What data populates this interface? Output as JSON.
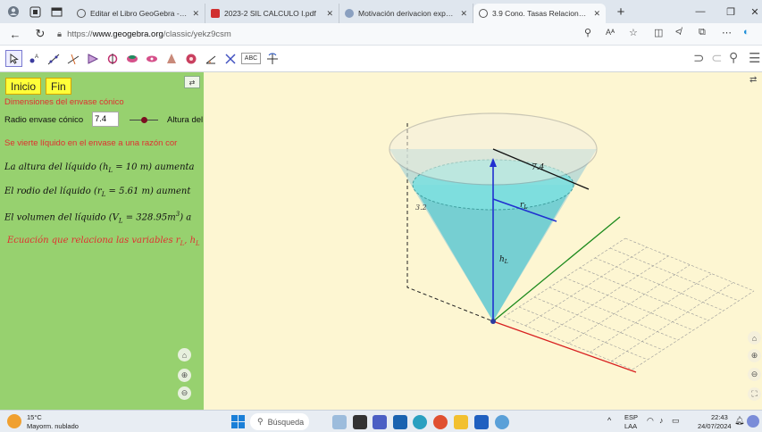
{
  "browser": {
    "tabs": [
      {
        "title": "Editar el Libro GeoGebra - CÁLC",
        "active": false,
        "favicon_color": "#555555"
      },
      {
        "title": "2023-2 SIL CALCULO I.pdf",
        "active": false,
        "favicon_color": "#d03030"
      },
      {
        "title": "Motivación derivacion exponenc",
        "active": false,
        "favicon_color": "#8aa0c0"
      },
      {
        "title": "3.9 Cono. Tasas Relacionadas - G",
        "active": true,
        "favicon_color": "#555555"
      }
    ],
    "new_tab": "+",
    "url_prefix": "https://",
    "url_host": "www.geogebra.org",
    "url_path": "/classic/yekz9csm",
    "reader_mode": "Aᴬ"
  },
  "toolbar": {
    "tools": [
      "pointer-tool",
      "point-tool",
      "line-tool",
      "perpendicular-tool",
      "polygon-tool",
      "circle-tool",
      "sphere-tool",
      "pyramid-tool",
      "plane-tool",
      "angle-tool",
      "reflect-tool",
      "text-tool",
      "rotate-view-tool"
    ],
    "text_tool_label": "ABC"
  },
  "algebra": {
    "start_label": "Inicio",
    "end_label": "Fin",
    "title": "Dimensiones del envase cónico",
    "radius_label": "Radio envase cónico",
    "radius_value": "7.4",
    "height_label": "Altura del",
    "pour_text": "Se vierte líquido en el  envase a una  razón cor",
    "height_line": "La altura del líquido (h",
    "height_line_rest": " = 10 m) aumenta",
    "radius_line": "El rodio del  líquido (r",
    "radius_line_rest": " = 5.61 m) aument",
    "volume_line": "El volumen del líquido (V",
    "volume_line_rest": " = 328.95m",
    "volume_tail": ") a",
    "sub_L": "L",
    "sup_3": "3",
    "equation_line": "Ecuación que relaciona las variables r",
    "equation_tail": ", h"
  },
  "graphics": {
    "label_top_radius": "7.4",
    "label_r": "r",
    "label_r_sub": "L",
    "label_h": "h",
    "label_h_sub": "L",
    "label_side": "3.2"
  },
  "taskbar": {
    "weather_temp": "15°C",
    "weather_desc": "Mayorm. nublado",
    "search_placeholder": "Búsqueda",
    "lang_top": "ESP",
    "lang_bottom": "LAA",
    "time": "22:43",
    "date": "24/07/2024"
  }
}
